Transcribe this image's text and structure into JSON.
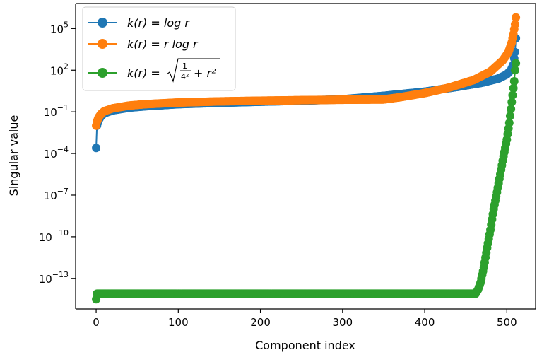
{
  "chart_data": {
    "type": "scatter",
    "xlabel": "Component index",
    "ylabel": "Singular value",
    "xlim": [
      -25,
      535
    ],
    "ylog": true,
    "ylog_range": [
      -15.2,
      6.8
    ],
    "xticks": [
      0,
      100,
      200,
      300,
      400,
      500
    ],
    "yticks": [
      {
        "exp": 5,
        "label": "10",
        "sup": "5"
      },
      {
        "exp": 2,
        "label": "10",
        "sup": "2"
      },
      {
        "exp": -1,
        "label": "10",
        "sup": "−1"
      },
      {
        "exp": -4,
        "label": "10",
        "sup": "−4"
      },
      {
        "exp": -7,
        "label": "10",
        "sup": "−7"
      },
      {
        "exp": -10,
        "label": "10",
        "sup": "−10"
      },
      {
        "exp": -13,
        "label": "10",
        "sup": "−13"
      }
    ],
    "legend_position": "top-left",
    "series": [
      {
        "name": "k(r) = log r",
        "color": "#1f77b4",
        "points": [
          [
            0,
            -3.6
          ],
          [
            1,
            -2.0
          ],
          [
            3,
            -1.6
          ],
          [
            6,
            -1.3
          ],
          [
            10,
            -1.1
          ],
          [
            20,
            -0.9
          ],
          [
            40,
            -0.7
          ],
          [
            60,
            -0.6
          ],
          [
            100,
            -0.45
          ],
          [
            150,
            -0.35
          ],
          [
            200,
            -0.27
          ],
          [
            250,
            -0.2
          ],
          [
            300,
            -0.1
          ],
          [
            350,
            0.15
          ],
          [
            400,
            0.45
          ],
          [
            440,
            0.8
          ],
          [
            470,
            1.1
          ],
          [
            490,
            1.4
          ],
          [
            500,
            1.7
          ],
          [
            505,
            2.0
          ],
          [
            508,
            2.4
          ],
          [
            510,
            3.3
          ],
          [
            511,
            4.3
          ]
        ]
      },
      {
        "name": "k(r) = r log r",
        "color": "#ff7f0e",
        "points": [
          [
            0,
            -2.0
          ],
          [
            1,
            -1.7
          ],
          [
            3,
            -1.4
          ],
          [
            6,
            -1.15
          ],
          [
            10,
            -0.95
          ],
          [
            20,
            -0.75
          ],
          [
            40,
            -0.55
          ],
          [
            60,
            -0.45
          ],
          [
            100,
            -0.33
          ],
          [
            150,
            -0.25
          ],
          [
            200,
            -0.2
          ],
          [
            250,
            -0.16
          ],
          [
            300,
            -0.13
          ],
          [
            350,
            -0.11
          ],
          [
            370,
            0.05
          ],
          [
            400,
            0.35
          ],
          [
            430,
            0.75
          ],
          [
            460,
            1.3
          ],
          [
            480,
            1.9
          ],
          [
            495,
            2.7
          ],
          [
            502,
            3.3
          ],
          [
            506,
            4.0
          ],
          [
            508,
            4.6
          ],
          [
            510,
            5.3
          ],
          [
            511,
            5.8
          ]
        ]
      },
      {
        "name": "k(r) = sqrt(1/4² + r²)",
        "color": "#2ca02c",
        "points": [
          [
            0,
            -14.5
          ],
          [
            1,
            -14.1
          ],
          [
            50,
            -14.1
          ],
          [
            150,
            -14.1
          ],
          [
            250,
            -14.1
          ],
          [
            350,
            -14.1
          ],
          [
            450,
            -14.1
          ],
          [
            462,
            -14.1
          ],
          [
            465,
            -13.8
          ],
          [
            468,
            -13.3
          ],
          [
            472,
            -12.2
          ],
          [
            476,
            -10.8
          ],
          [
            480,
            -9.5
          ],
          [
            484,
            -8.0
          ],
          [
            488,
            -6.8
          ],
          [
            492,
            -5.5
          ],
          [
            496,
            -4.2
          ],
          [
            500,
            -3.0
          ],
          [
            503,
            -1.8
          ],
          [
            505,
            -0.8
          ],
          [
            507,
            0.2
          ],
          [
            509,
            1.2
          ],
          [
            510,
            2.0
          ],
          [
            511,
            2.5
          ]
        ]
      }
    ]
  }
}
